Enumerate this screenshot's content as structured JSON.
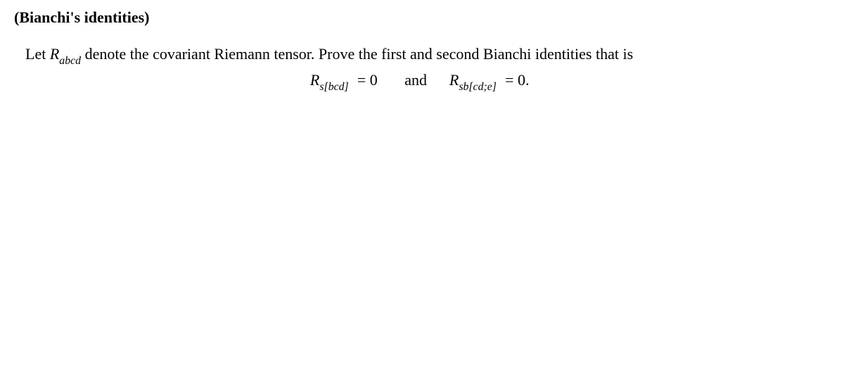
{
  "title": "(Bianchi's identities)",
  "paragraph": {
    "lead": "Let ",
    "tensor_base": "R",
    "tensor_sub": "abcd",
    "after_tensor": " denote the covariant Riemann tensor. Prove the first and second Bianchi identities that is"
  },
  "equation": {
    "first": {
      "base": "R",
      "sub": "s[bcd]",
      "rhs": "= 0"
    },
    "connector": "and",
    "second": {
      "base": "R",
      "sub": "sb[cd;e]",
      "rhs": "= 0."
    }
  },
  "style": {
    "font_family": "Times New Roman, Georgia, serif",
    "title_fontsize": 22,
    "body_fontsize": 22,
    "background_color": "#ffffff",
    "text_color": "#000000"
  }
}
